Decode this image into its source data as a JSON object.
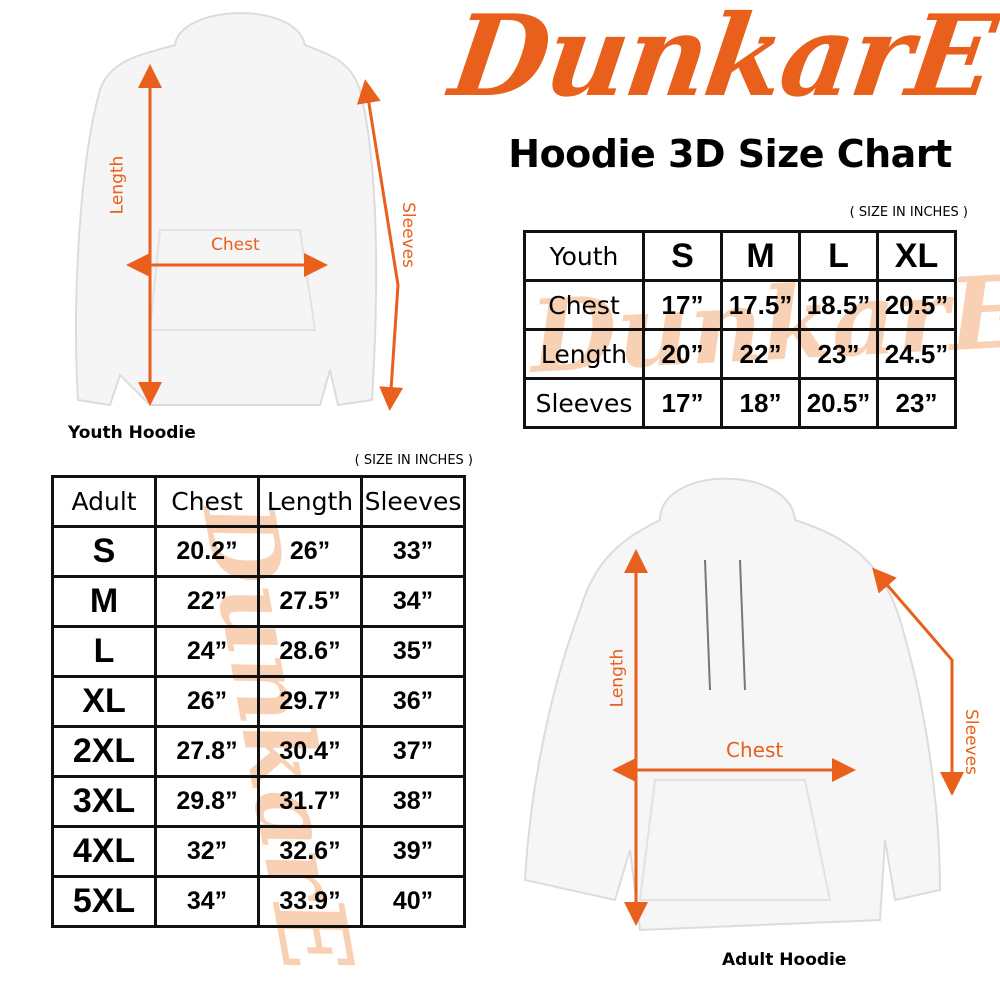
{
  "brand": {
    "logo_text": "DunkarE",
    "accent_color": "#e8601c",
    "watermark_color": "#f7c9a8"
  },
  "title": "Hoodie 3D Size Chart",
  "youth": {
    "unit_note": "( SIZE IN INCHES )",
    "caption": "Youth Hoodie",
    "labels": {
      "length": "Length",
      "chest": "Chest",
      "sleeves": "Sleeves"
    },
    "table": {
      "header": [
        "Youth",
        "S",
        "M",
        "L",
        "XL"
      ],
      "rows": [
        [
          "Chest",
          "17”",
          "17.5”",
          "18.5”",
          "20.5”"
        ],
        [
          "Length",
          "20”",
          "22”",
          "23”",
          "24.5”"
        ],
        [
          "Sleeves",
          "17”",
          "18”",
          "20.5”",
          "23”"
        ]
      ]
    }
  },
  "adult": {
    "unit_note": "( SIZE IN INCHES )",
    "caption": "Adult Hoodie",
    "labels": {
      "length": "Length",
      "chest": "Chest",
      "sleeves": "Sleeves"
    },
    "table": {
      "header": [
        "Adult",
        "Chest",
        "Length",
        "Sleeves"
      ],
      "rows": [
        [
          "S",
          "20.2”",
          "26”",
          "33”"
        ],
        [
          "M",
          "22”",
          "27.5”",
          "34”"
        ],
        [
          "L",
          "24”",
          "28.6”",
          "35”"
        ],
        [
          "XL",
          "26”",
          "29.7”",
          "36”"
        ],
        [
          "2XL",
          "27.8”",
          "30.4”",
          "37”"
        ],
        [
          "3XL",
          "29.8”",
          "31.7”",
          "38”"
        ],
        [
          "4XL",
          "32”",
          "32.6”",
          "39”"
        ],
        [
          "5XL",
          "34”",
          "33.9”",
          "40”"
        ]
      ]
    }
  }
}
